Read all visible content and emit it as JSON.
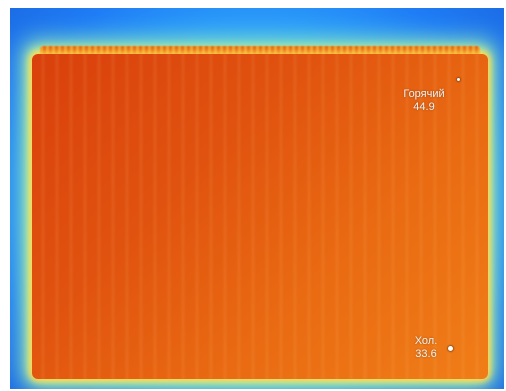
{
  "thermal_image": {
    "hot_spot": {
      "label": "Горячий",
      "value": "44.9"
    },
    "cold_spot": {
      "label": "Хол.",
      "value": "33.6"
    },
    "colors": {
      "hot": "#d9400c",
      "warm": "#f07d17",
      "edge": "#f4ff7a",
      "background": "#1f7df5"
    }
  }
}
